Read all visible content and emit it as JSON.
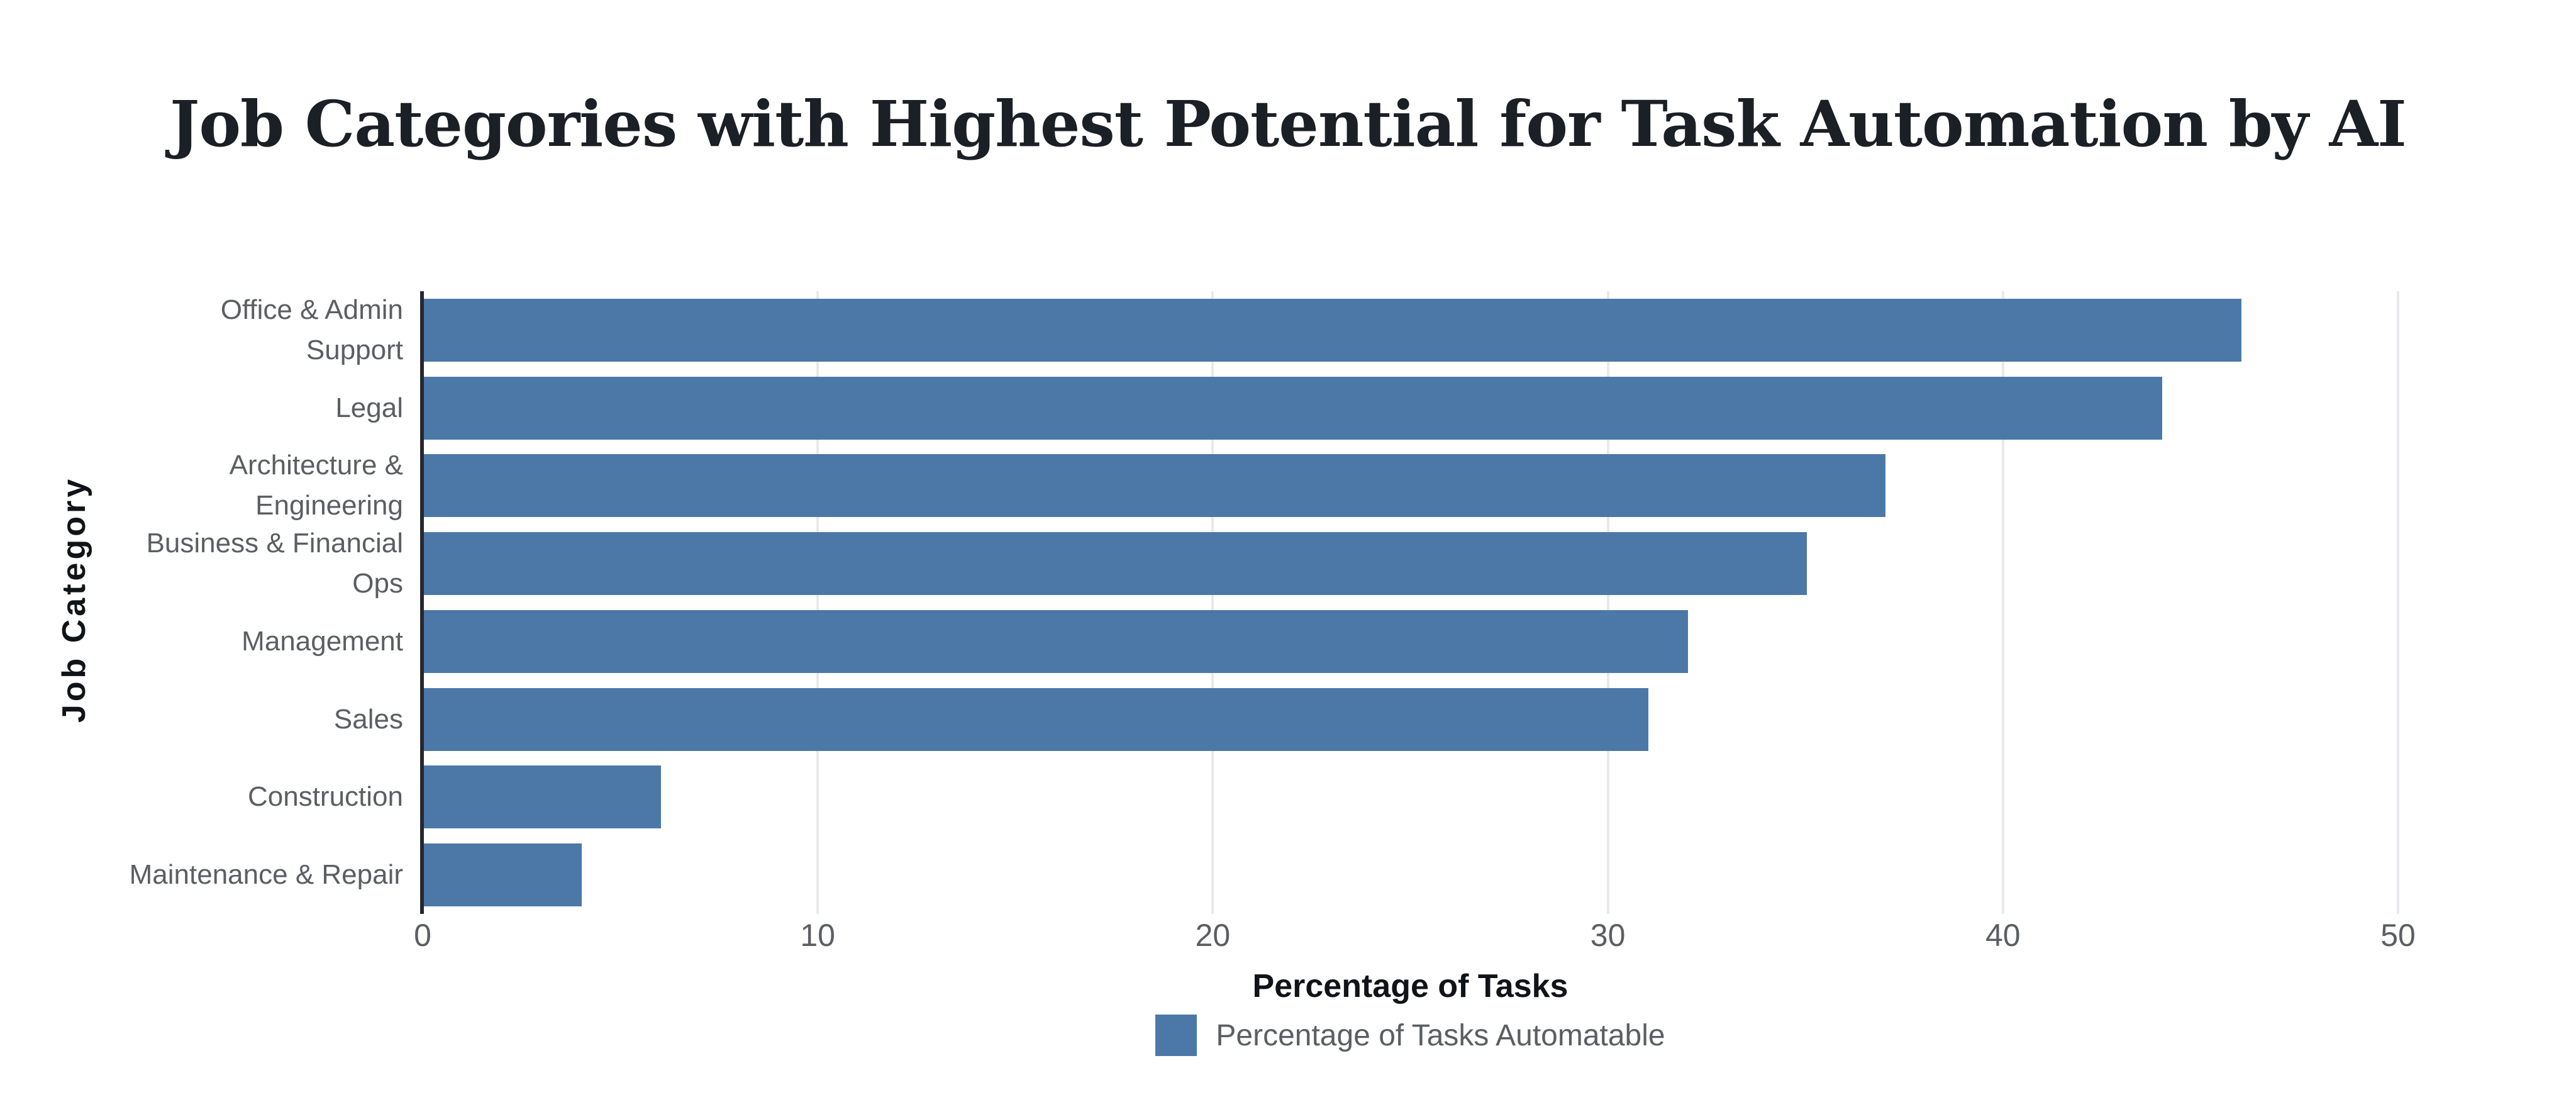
{
  "chart_data": {
    "type": "bar",
    "orientation": "horizontal",
    "title": "Job Categories with Highest Potential for Task Automation by AI",
    "categories": [
      "Office & Admin Support",
      "Legal",
      "Architecture & Engineering",
      "Business & Financial Ops",
      "Management",
      "Sales",
      "Construction",
      "Maintenance & Repair"
    ],
    "display_labels": [
      "Office & Admin\nSupport",
      "Legal",
      "Architecture &\nEngineering",
      "Business & Financial\nOps",
      "Management",
      "Sales",
      "Construction",
      "Maintenance & Repair"
    ],
    "series": [
      {
        "name": "Percentage of Tasks Automatable",
        "values": [
          46,
          44,
          37,
          35,
          32,
          31,
          6,
          4
        ]
      }
    ],
    "values": [
      46,
      44,
      37,
      35,
      32,
      31,
      6,
      4
    ],
    "xlabel": "Percentage of Tasks",
    "ylabel": "Job Category",
    "xlim": [
      0,
      50
    ],
    "xticks": [
      0,
      10,
      20,
      30,
      40,
      50
    ],
    "grid": true,
    "legend_label": "Percentage of Tasks Automatable",
    "legend_position": "bottom",
    "colors": {
      "bar": "#4c78a8",
      "grid": "#e7e9ec",
      "axis_line": "#24282d",
      "label": "#5b5e63",
      "axis_title": "#101419",
      "title": "#1b1f26",
      "background": "#ffffff"
    }
  }
}
